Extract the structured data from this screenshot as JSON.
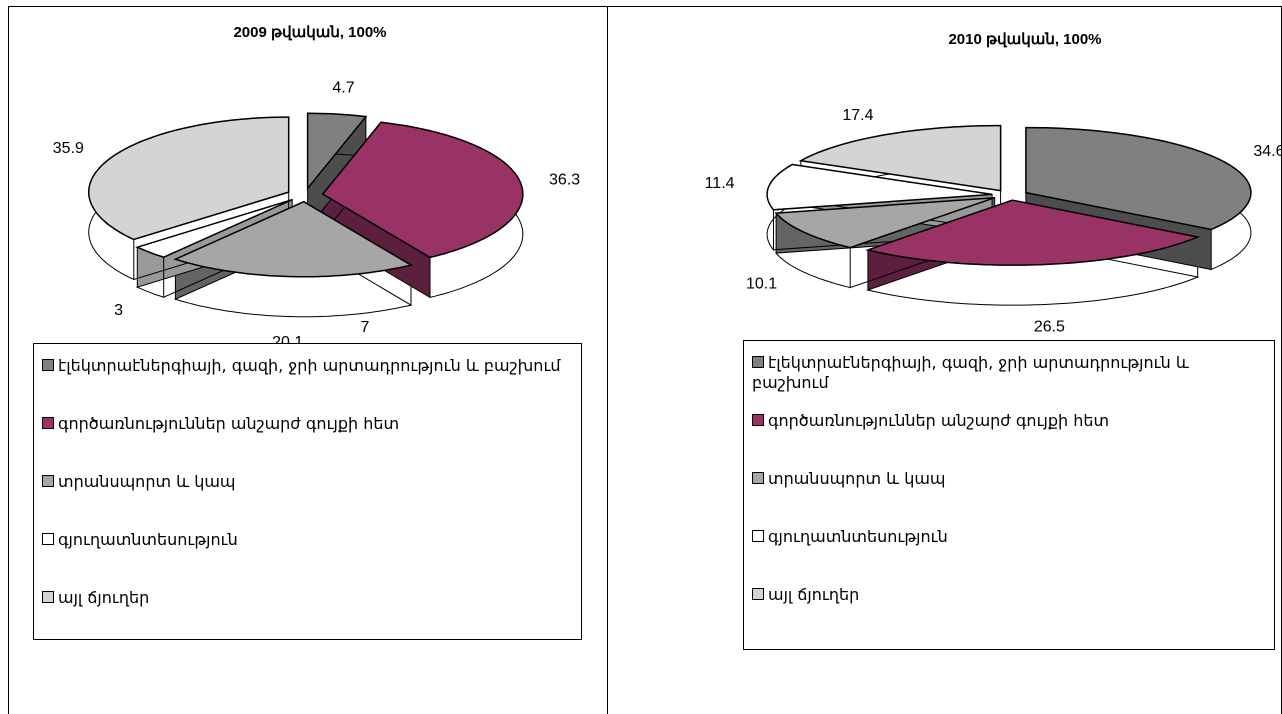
{
  "chart_data": [
    {
      "type": "pie",
      "title": "2009 թվական, 100%",
      "categories": [
        "էլեկտրաէներգիայի, գազի, ջրի արտադրություն և բաշխում",
        "գործառնություններ անշարժ գույքի հետ",
        "տրանսպորտ և կապ",
        "գյուղատնտեսություն",
        "այլ ճյուղեր"
      ],
      "values": [
        4.7,
        36.3,
        20.1,
        3,
        35.9
      ],
      "colors": [
        "#808080",
        "#993366",
        "#a6a6a6",
        "#ffffff",
        "#d4d4d4"
      ],
      "annotations": [
        "7"
      ]
    },
    {
      "type": "pie",
      "title": "2010 թվական, 100%",
      "categories": [
        "էլեկտրաէներգիայի, գազի, ջրի արտադրություն և բաշխում",
        "գործառնություններ անշարժ գույքի հետ",
        "տրանսպորտ և կապ",
        "գյուղատնտեսություն",
        "այլ ճյուղեր"
      ],
      "values": [
        34.6,
        26.5,
        10.1,
        11.4,
        17.4
      ],
      "colors": [
        "#808080",
        "#993366",
        "#a6a6a6",
        "#ffffff",
        "#d4d4d4"
      ]
    }
  ]
}
